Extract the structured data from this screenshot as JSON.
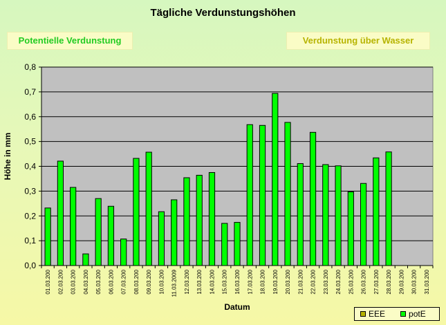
{
  "header": {
    "title": "Tägliche Verdunstungshöhen",
    "btn_potentiell": "Potentielle Verdunstung",
    "btn_wasser": "Verdunstung über Wasser"
  },
  "colors": {
    "bar": "#00ff00",
    "eee": "#b7b400",
    "plot_bg": "#c0c0c0"
  },
  "chart_data": {
    "type": "bar",
    "xlabel": "Datum",
    "ylabel": "Höhe in mm",
    "ylim": [
      0,
      0.8
    ],
    "yticks": [
      "0,0",
      "0,1",
      "0,2",
      "0,3",
      "0,4",
      "0,5",
      "0,6",
      "0,7",
      "0,8"
    ],
    "grid": true,
    "legend_position": "bottom-right",
    "categories": [
      "01.03.200",
      "02.03.200",
      "03.03.200",
      "04.03.200",
      "05.03.200",
      "06.03.200",
      "07.03.200",
      "08.03.200",
      "09.03.200",
      "10.03.200",
      "11.03.2009",
      "12.03.200",
      "13.03.200",
      "14.03.200",
      "15.03.200",
      "16.03.200",
      "17.03.200",
      "18.03.200",
      "19.03.200",
      "20.03.200",
      "21.03.200",
      "22.03.200",
      "23.03.200",
      "24.03.200",
      "25.03.200",
      "26.03.200",
      "27.03.200",
      "28.03.200",
      "29.03.200",
      "30.03.200",
      "31.03.200"
    ],
    "series": [
      {
        "name": "EEE",
        "values": [
          null,
          null,
          null,
          null,
          null,
          null,
          null,
          null,
          null,
          null,
          null,
          null,
          null,
          null,
          null,
          null,
          null,
          null,
          null,
          null,
          null,
          null,
          null,
          null,
          null,
          null,
          null,
          null,
          null,
          null,
          null
        ]
      },
      {
        "name": "potE",
        "values": [
          0.232,
          0.421,
          0.315,
          0.047,
          0.27,
          0.239,
          0.107,
          0.432,
          0.457,
          0.217,
          0.265,
          0.354,
          0.364,
          0.375,
          0.17,
          0.174,
          0.568,
          0.565,
          0.694,
          0.577,
          0.411,
          0.537,
          0.407,
          0.402,
          0.297,
          0.331,
          0.434,
          0.458,
          null,
          null,
          null
        ]
      }
    ]
  }
}
